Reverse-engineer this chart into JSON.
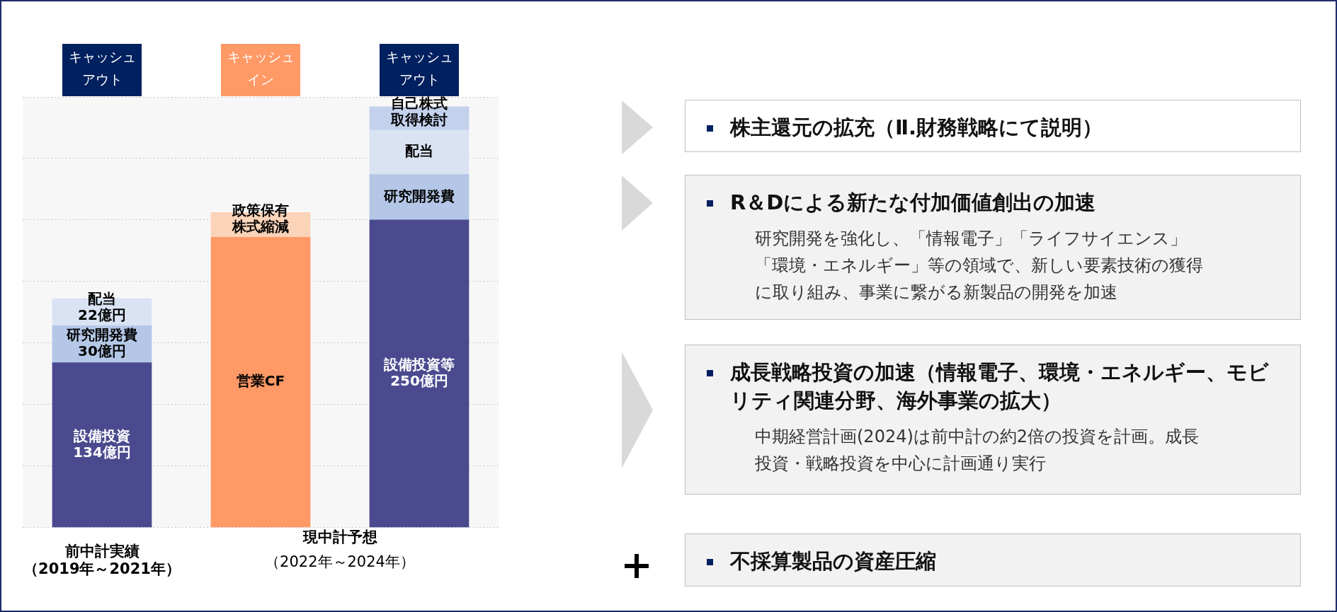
{
  "chart_data": [
    {
      "type": "bar",
      "stacked": true,
      "categories": [
        "前中計実績（2019年～2021年）",
        null,
        null
      ],
      "series": [
        {
          "name": "設備投資",
          "color": "#4b4a8f",
          "values": [
            134,
            null,
            null
          ],
          "value_labels": [
            "134億円",
            null,
            null
          ]
        },
        {
          "name": "設備投資等",
          "color": "#4b4a8f",
          "values": [
            null,
            null,
            250
          ],
          "value_labels": [
            null,
            null,
            "250億円"
          ]
        },
        {
          "name": "営業CF",
          "color": "#ff9966",
          "values": [
            null,
            236,
            null
          ]
        },
        {
          "name": "研究開発費",
          "color": "#b4c7e7",
          "values": [
            30,
            null,
            37
          ],
          "value_labels": [
            "30億円",
            null,
            null
          ]
        },
        {
          "name": "政策保有株式縮減",
          "color": "#fbd3b9",
          "values": [
            null,
            20,
            null
          ]
        },
        {
          "name": "配当",
          "color": "#dae3f3",
          "values": [
            22,
            null,
            36
          ],
          "value_labels": [
            "22億円",
            null,
            null
          ]
        },
        {
          "name": "自己株式取得検討",
          "color": "#c3d1ec",
          "values": [
            null,
            null,
            19
          ]
        }
      ],
      "ylim": [
        0,
        350
      ],
      "yticks": [
        {
          "value": 0,
          "label": null
        },
        {
          "value": 50,
          "label": null
        },
        {
          "value": 100,
          "label": null
        },
        {
          "value": 150,
          "label": null
        },
        {
          "value": 200,
          "label": null
        },
        {
          "value": 250,
          "label": null
        },
        {
          "value": 300,
          "label": null
        },
        {
          "value": 350,
          "label": null
        }
      ],
      "grid": "y",
      "tick_labels": "x",
      "annotations": [
        "キャッシュアウト",
        "キャッシュイン",
        "キャッシュアウト",
        "現中計予想（2022年～2024年）"
      ]
    },
    {
      "type": "other",
      "annotations": [
        "株主還元の拡充（Ⅱ.財務戦略にて説明）",
        "R＆Dによる新たな付加価値創出の加速",
        "研究開発を強化し、「情報電子」「ライフサイエンス」「環境・エネルギー」等の領域で、新しい要素技術の獲得に取り組み、事業に繋がる新製品の開発を加速",
        "成長戦略投資の加速（情報電子、環境・エネルギー、モビリティ関連分野、海外事業の拡大）",
        "中期経営計画(2024)は前中計の約2倍の投資を計画。成長投資・戦略投資を中心に計画通り実行",
        "不採算製品の資産圧縮"
      ]
    }
  ]
}
